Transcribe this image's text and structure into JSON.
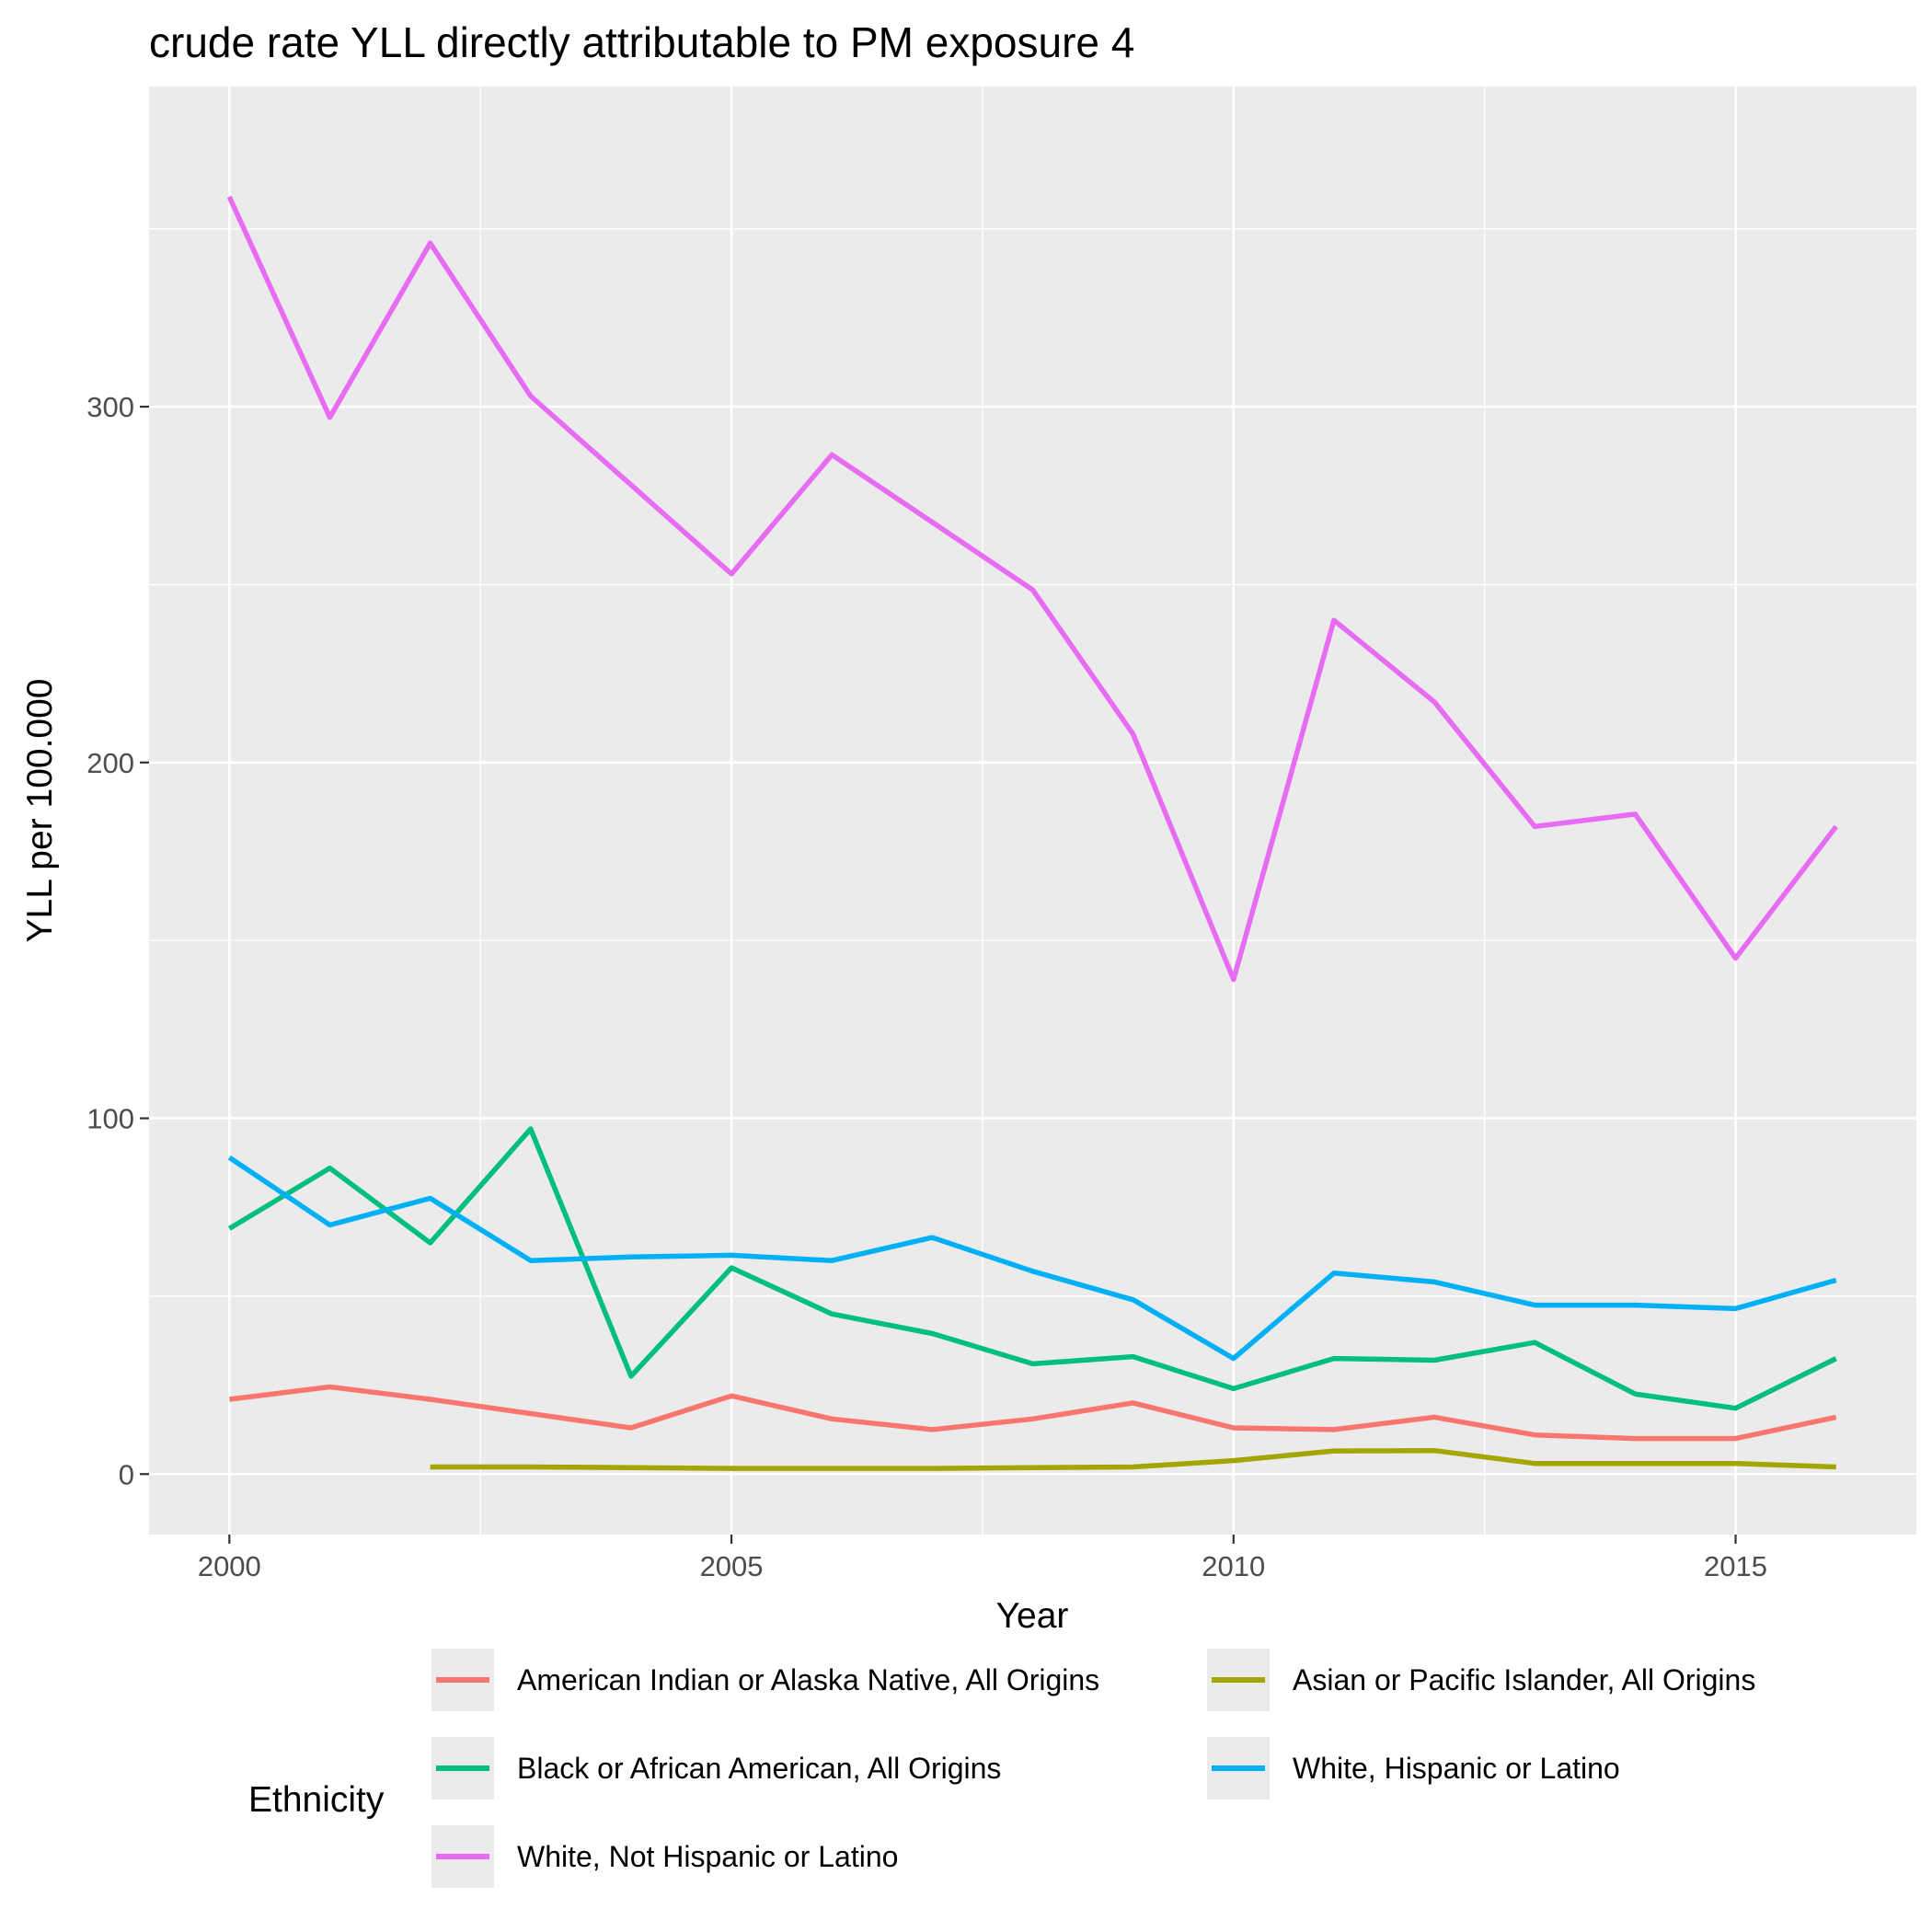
{
  "chart_data": {
    "type": "line",
    "title": "crude rate YLL directly attributable to PM exposure 4",
    "xlabel": "Year",
    "ylabel": "YLL per 100.000",
    "xlim": [
      1999.2,
      2016.8
    ],
    "ylim": [
      -17,
      390
    ],
    "x_ticks": [
      2000,
      2005,
      2010,
      2015
    ],
    "x_tick_labels": [
      "2000",
      "2005",
      "2010",
      "2015"
    ],
    "y_ticks": [
      0,
      100,
      200,
      300
    ],
    "y_tick_labels": [
      "0",
      "100",
      "200",
      "300"
    ],
    "grid": true,
    "legend": {
      "title": "Ethnicity",
      "position": "bottom",
      "columns": 2
    },
    "series": [
      {
        "name": "American Indian or Alaska Native, All Origins",
        "color": "#F8766D",
        "x": [
          2000,
          2001,
          2002,
          2003,
          2004,
          2005,
          2006,
          2007,
          2008,
          2009,
          2010,
          2011,
          2012,
          2013,
          2014,
          2015,
          2016
        ],
        "values": [
          21,
          24.5,
          21,
          17,
          13,
          22,
          15.5,
          12.5,
          15.5,
          20,
          13,
          12.5,
          16,
          11,
          10,
          10,
          16
        ]
      },
      {
        "name": "Asian or Pacific Islander, All Origins",
        "color": "#A3A500",
        "x": [
          2002,
          2003,
          2004,
          2005,
          2006,
          2007,
          2008,
          2009,
          2010,
          2011,
          2012,
          2013,
          2014,
          2015,
          2016
        ],
        "values": [
          2,
          2,
          1.8,
          1.6,
          1.6,
          1.6,
          1.8,
          2,
          3.8,
          6.5,
          6.6,
          3,
          3,
          3,
          2
        ]
      },
      {
        "name": "Black or African American, All Origins",
        "color": "#00BF7D",
        "x": [
          2000,
          2001,
          2002,
          2003,
          2004,
          2005,
          2006,
          2007,
          2008,
          2009,
          2010,
          2011,
          2012,
          2013,
          2014,
          2015,
          2016
        ],
        "values": [
          69,
          86,
          65,
          97,
          27.5,
          58,
          45,
          39.5,
          31,
          33,
          24,
          32.5,
          32,
          37,
          22.5,
          18.5,
          32.5
        ]
      },
      {
        "name": "White, Hispanic or Latino",
        "color": "#00B0F6",
        "x": [
          2000,
          2001,
          2002,
          2003,
          2004,
          2005,
          2006,
          2007,
          2008,
          2009,
          2010,
          2011,
          2012,
          2013,
          2014,
          2015,
          2016
        ],
        "values": [
          89,
          70,
          77.5,
          60,
          61,
          61.5,
          60,
          66.5,
          57,
          49,
          32.5,
          56.5,
          54,
          47.5,
          47.5,
          46.5,
          54.5
        ]
      },
      {
        "name": "White, Not Hispanic or Latino",
        "color": "#E76BF3",
        "x": [
          2000,
          2001,
          2002,
          2003,
          2004,
          2005,
          2006,
          2007,
          2008,
          2009,
          2010,
          2011,
          2012,
          2013,
          2014,
          2015,
          2016
        ],
        "values": [
          359,
          297,
          346,
          303,
          278,
          253,
          286.5,
          267.5,
          248.5,
          208,
          139,
          240,
          217,
          182,
          185.5,
          145,
          182
        ]
      }
    ]
  }
}
